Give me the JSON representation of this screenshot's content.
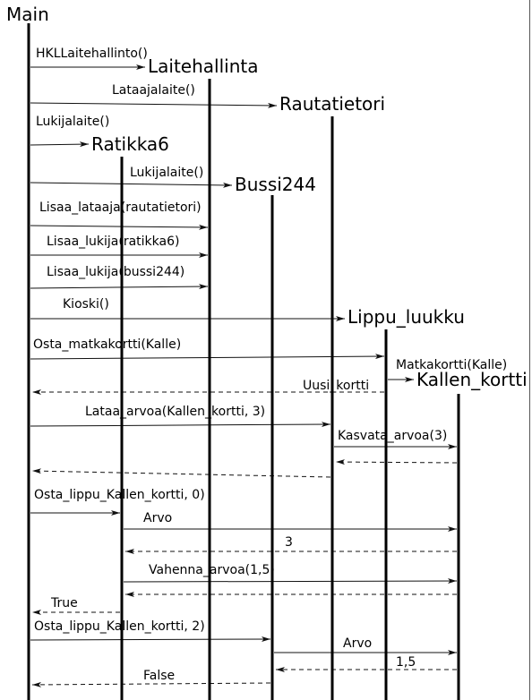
{
  "lifelines": [
    {
      "name": "Main"
    },
    {
      "name": "Laitehallinta"
    },
    {
      "name": "Rautatietori"
    },
    {
      "name": "Ratikka6"
    },
    {
      "name": "Bussi244"
    },
    {
      "name": "Lippu_luukku"
    },
    {
      "name": "Kallen_kortti"
    }
  ],
  "messages": [
    {
      "label": "HKLLaitehallinto()",
      "from": 0,
      "to": 1,
      "creates": true
    },
    {
      "label": "Lataajalaite()",
      "from": 0,
      "to": 2,
      "creates": true
    },
    {
      "label": "Lukijalaite()",
      "from": 0,
      "to": 3,
      "creates": true
    },
    {
      "label": "Lukijalaite()",
      "from": 0,
      "to": 4,
      "creates": true
    },
    {
      "label": "Lisaa_lataaja(rautatietori)",
      "from": 0,
      "to": 1
    },
    {
      "label": "Lisaa_lukija(ratikka6)",
      "from": 0,
      "to": 1
    },
    {
      "label": "Lisaa_lukija(bussi244)",
      "from": 0,
      "to": 1
    },
    {
      "label": "Kioski()",
      "from": 0,
      "to": 5,
      "creates": true
    },
    {
      "label": "Osta_matkakortti(Kalle)",
      "from": 0,
      "to": 5
    },
    {
      "label": "Matkakortti(Kalle)",
      "from": 5,
      "to": 6,
      "creates": true
    },
    {
      "label": "Uusi_kortti",
      "from": 5,
      "to": 0,
      "reply": true
    },
    {
      "label": "Lataa_arvoa(Kallen_kortti, 3)",
      "from": 0,
      "to": 2
    },
    {
      "label": "Kasvata_arvoa(3)",
      "from": 2,
      "to": 6
    },
    {
      "from": 6,
      "to": 2,
      "reply": true
    },
    {
      "from": 2,
      "to": 0,
      "reply": true
    },
    {
      "label": "Osta_lippu_Kallen_kortti, 0)",
      "from": 0,
      "to": 3
    },
    {
      "label": "Arvo",
      "from": 3,
      "to": 6
    },
    {
      "label": "3",
      "from": 6,
      "to": 3,
      "reply": true
    },
    {
      "label": "Vahenna_arvoa(1,5)",
      "from": 3,
      "to": 6
    },
    {
      "from": 6,
      "to": 3,
      "reply": true
    },
    {
      "label": "True",
      "from": 3,
      "to": 0,
      "reply": true
    },
    {
      "label": "Osta_lippu_Kallen_kortti, 2)",
      "from": 0,
      "to": 4
    },
    {
      "label": "Arvo",
      "from": 4,
      "to": 6
    },
    {
      "label": "1,5",
      "from": 6,
      "to": 4,
      "reply": true
    },
    {
      "label": "False",
      "from": 4,
      "to": 0,
      "reply": true
    }
  ]
}
